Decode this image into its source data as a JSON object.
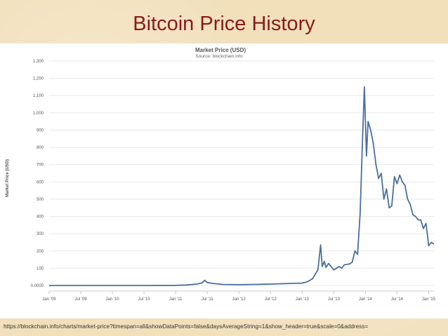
{
  "slide": {
    "title": "Bitcoin Price History",
    "source_url": "https://blockchain.info/charts/market-price?timespan=all&showDataPoints=false&daysAverageString=1&show_header=true&scale=0&address="
  },
  "colors": {
    "title": "#8b1a1a",
    "line": "#4a6f9c",
    "grid": "#e8e8e8"
  },
  "chart_data": {
    "type": "line",
    "title": "Market Price (USD)",
    "subtitle": "Source: blockchain.info",
    "xlabel": "",
    "ylabel": "Market Price (USD)",
    "ylim": [
      0,
      1300
    ],
    "xlim": [
      0,
      73
    ],
    "yticks": [
      {
        "value": 0,
        "label": "0.0000"
      },
      {
        "value": 100,
        "label": "100"
      },
      {
        "value": 200,
        "label": "200"
      },
      {
        "value": 300,
        "label": "300"
      },
      {
        "value": 400,
        "label": "400"
      },
      {
        "value": 500,
        "label": "500"
      },
      {
        "value": 600,
        "label": "600"
      },
      {
        "value": 700,
        "label": "700"
      },
      {
        "value": 800,
        "label": "800"
      },
      {
        "value": 900,
        "label": "900"
      },
      {
        "value": 1000,
        "label": "1,000"
      },
      {
        "value": 1100,
        "label": "1,100"
      },
      {
        "value": 1200,
        "label": "1,200"
      },
      {
        "value": 1300,
        "label": "1,300"
      }
    ],
    "xticks": [
      {
        "value": 0,
        "label": "Jan '09"
      },
      {
        "value": 6,
        "label": "Jul '09"
      },
      {
        "value": 12,
        "label": "Jan '10"
      },
      {
        "value": 18,
        "label": "Jul '10"
      },
      {
        "value": 24,
        "label": "Jan '11"
      },
      {
        "value": 30,
        "label": "Jul '11"
      },
      {
        "value": 36,
        "label": "Jan '12"
      },
      {
        "value": 42,
        "label": "Jul '12"
      },
      {
        "value": 48,
        "label": "Jan '13"
      },
      {
        "value": 54,
        "label": "Jul '13"
      },
      {
        "value": 60,
        "label": "Jan '14"
      },
      {
        "value": 66,
        "label": "Jul '14"
      },
      {
        "value": 72,
        "label": "Jan '15"
      }
    ],
    "series": [
      {
        "name": "Market Price (USD)",
        "x": [
          0,
          12,
          18,
          24,
          26,
          28,
          29,
          29.5,
          30,
          31,
          33,
          36,
          39,
          42,
          44,
          46,
          48,
          49,
          50,
          51,
          51.5,
          51.8,
          52.2,
          52.5,
          53,
          54,
          55,
          55.5,
          56,
          57,
          57.5,
          58,
          58.5,
          59,
          59.4,
          59.8,
          60.2,
          60.5,
          61,
          61.5,
          62,
          62.5,
          63,
          63.5,
          64,
          64.5,
          65,
          65.5,
          66,
          66.5,
          67,
          67.5,
          68,
          68.5,
          69,
          69.5,
          70,
          70.5,
          71,
          71.5,
          72,
          72.5,
          73
        ],
        "y": [
          0,
          0,
          0,
          1,
          3,
          8,
          15,
          30,
          17,
          12,
          6,
          5,
          6,
          8,
          10,
          12,
          14,
          22,
          40,
          92,
          235,
          110,
          140,
          105,
          128,
          90,
          110,
          100,
          120,
          125,
          135,
          200,
          180,
          420,
          800,
          1150,
          750,
          950,
          900,
          820,
          700,
          620,
          650,
          500,
          560,
          450,
          460,
          630,
          590,
          640,
          600,
          580,
          500,
          470,
          410,
          400,
          380,
          380,
          330,
          360,
          230,
          250,
          240
        ]
      }
    ]
  }
}
